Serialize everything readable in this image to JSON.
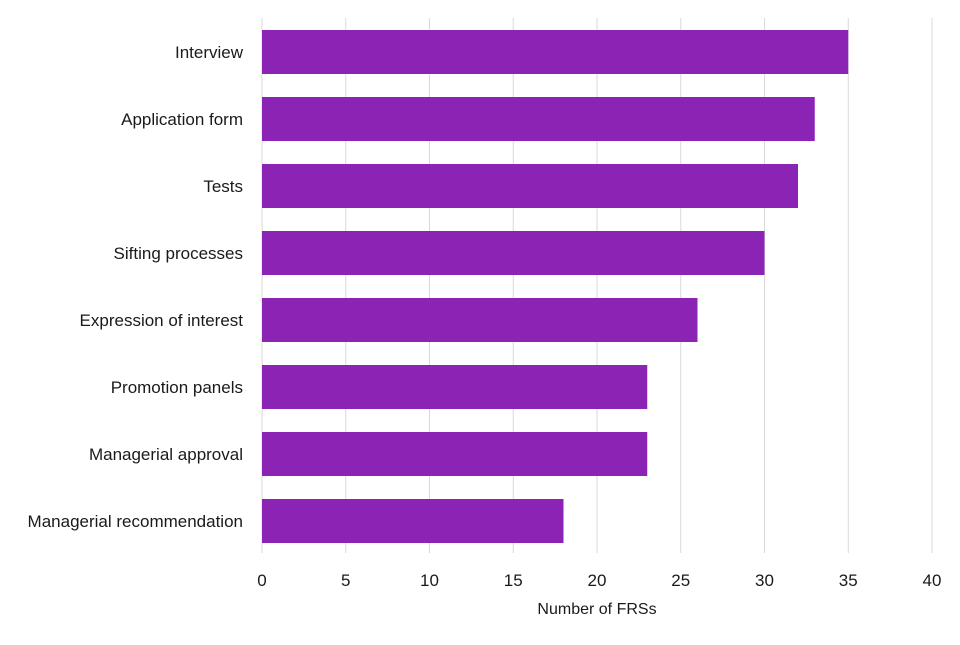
{
  "chart_data": {
    "type": "bar",
    "orientation": "horizontal",
    "title": "",
    "xlabel": "Number of FRSs",
    "ylabel": "",
    "categories": [
      "Interview",
      "Application form",
      "Tests",
      "Sifting processes",
      "Expression of interest",
      "Promotion panels",
      "Managerial approval",
      "Managerial recommendation"
    ],
    "values": [
      35,
      33,
      32,
      30,
      26,
      23,
      23,
      18
    ],
    "xlim": [
      0,
      40
    ],
    "xticks": [
      "0",
      "5",
      "10",
      "15",
      "20",
      "25",
      "30",
      "35",
      "40"
    ],
    "grid": "vertical",
    "legend": "none",
    "bar_color": "#8b24b5",
    "grid_color": "#d9d9d9"
  }
}
